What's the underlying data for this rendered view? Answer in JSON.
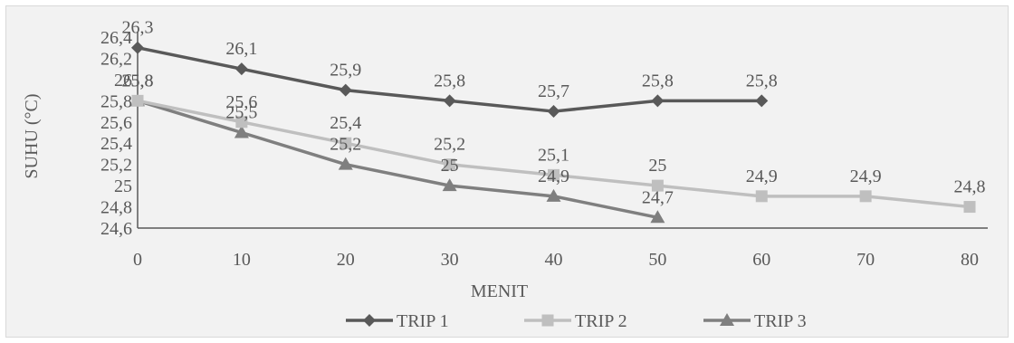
{
  "chart_data": {
    "type": "line",
    "xlabel": "MENIT",
    "ylabel": "SUHU (°C)",
    "x": [
      0,
      10,
      20,
      30,
      40,
      50,
      60,
      70,
      80
    ],
    "xticks": [
      "0",
      "10",
      "20",
      "30",
      "40",
      "50",
      "60",
      "70",
      "80"
    ],
    "ylim": [
      24.6,
      26.4
    ],
    "yticks": [
      "24,6",
      "24,8",
      "25",
      "25,2",
      "25,4",
      "25,6",
      "25,8",
      "26",
      "26,2",
      "26,4"
    ],
    "grid": false,
    "legend_position": "bottom",
    "series": [
      {
        "name": "TRIP 1",
        "marker": "diamond",
        "color": "#595959",
        "x": [
          0,
          10,
          20,
          30,
          40,
          50,
          60
        ],
        "values": [
          26.3,
          26.1,
          25.9,
          25.8,
          25.7,
          25.8,
          25.8
        ],
        "labels": [
          "26,3",
          "26,1",
          "25,9",
          "25,8",
          "25,7",
          "25,8",
          "25,8"
        ]
      },
      {
        "name": "TRIP 2",
        "marker": "square",
        "color": "#bfbfbf",
        "x": [
          0,
          10,
          20,
          30,
          40,
          50,
          60,
          70,
          80
        ],
        "values": [
          25.8,
          25.6,
          25.4,
          25.2,
          25.1,
          25.0,
          24.9,
          24.9,
          24.8
        ],
        "labels": [
          "25,8",
          "25,6",
          "25,4",
          "25,2",
          "25,1",
          "25",
          "24,9",
          "24,9",
          "24,8"
        ]
      },
      {
        "name": "TRIP 3",
        "marker": "triangle",
        "color": "#7f7f7f",
        "x": [
          0,
          10,
          20,
          30,
          40,
          50
        ],
        "values": [
          25.8,
          25.5,
          25.2,
          25.0,
          24.9,
          24.7
        ],
        "labels": [
          "25,8",
          "25,5",
          "25,2",
          "25",
          "24,9",
          "24,7"
        ]
      }
    ]
  }
}
